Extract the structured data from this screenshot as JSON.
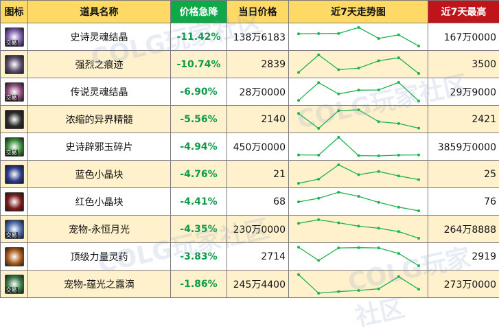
{
  "headers": {
    "icon": "图标",
    "name": "道具名称",
    "drop": "价格急降",
    "price": "当日价格",
    "trend": "近7天走势图",
    "max": "近7天最高"
  },
  "colors": {
    "header_bg": "#ffd966",
    "drop_header_bg": "#10a94a",
    "max_header_bg": "#c0141b",
    "alt_row_bg": "#fff1cc",
    "drop_text": "#0e9a48",
    "trend_line": "#1db34f"
  },
  "trade_tag": "交易",
  "watermark": "COLG玩家社区",
  "rows": [
    {
      "icon": "soul-crystal-epic-icon",
      "icon_bg": "#7a5aa8",
      "tag": true,
      "name": "史诗灵魂结晶",
      "drop": "-11.42%",
      "price": "138万6183",
      "max": "167万0000",
      "trend": [
        5,
        5.1,
        5.15,
        7.6,
        3.1,
        4.6,
        0
      ]
    },
    {
      "icon": "intense-trace-icon",
      "icon_bg": "#5a4a6a",
      "tag": false,
      "name": "强烈之痕迹",
      "drop": "-10.74%",
      "price": "2839",
      "max": "3500",
      "trend": [
        0.6,
        7.5,
        1.7,
        2.3,
        5.2,
        6.4,
        0.2
      ]
    },
    {
      "icon": "soul-crystal-legendary-icon",
      "icon_bg": "#8a4a7a",
      "tag": true,
      "name": "传说灵魂结晶",
      "drop": "-6.90%",
      "price": "28万0000",
      "max": "29万9000",
      "trend": [
        0.8,
        7.4,
        3.2,
        4.6,
        4.7,
        7.5,
        0.6
      ]
    },
    {
      "icon": "condensed-essence-icon",
      "icon_bg": "#2a2a2a",
      "tag": false,
      "name": "浓缩的异界精髓",
      "drop": "-5.56%",
      "price": "2140",
      "max": "2421",
      "trend": [
        6.6,
        0.8,
        7.7,
        8.0,
        3.4,
        2.7,
        0.9
      ]
    },
    {
      "icon": "epic-jade-fragment-icon",
      "icon_bg": "#3a8a3a",
      "tag": true,
      "name": "史诗辟邪玉碎片",
      "drop": "-4.94%",
      "price": "450万0000",
      "max": "3859万0000",
      "trend": [
        0.4,
        0.3,
        7.6,
        0.1,
        0.0,
        0.3,
        0.4
      ]
    },
    {
      "icon": "blue-crystal-icon",
      "icon_bg": "#2a3a8a",
      "tag": false,
      "name": "蓝色小晶块",
      "drop": "-4.76%",
      "price": "21",
      "max": "25",
      "trend": [
        0.3,
        2.0,
        7.8,
        3.8,
        5.1,
        3.3,
        1.8
      ]
    },
    {
      "icon": "red-crystal-icon",
      "icon_bg": "#7a1a1a",
      "tag": false,
      "name": "红色小晶块",
      "drop": "-4.41%",
      "price": "68",
      "max": "76",
      "trend": [
        3.8,
        5.3,
        7.8,
        6.1,
        3.6,
        1.6,
        0.1
      ]
    },
    {
      "icon": "pet-moonlight-icon",
      "icon_bg": "#4a6aaa",
      "tag": true,
      "name": "宠物-永恒月光",
      "drop": "-4.35%",
      "price": "230万0000",
      "max": "264万8888",
      "trend": [
        6.2,
        7.6,
        6.4,
        5.1,
        4.3,
        3.0,
        0.4
      ]
    },
    {
      "icon": "top-power-potion-icon",
      "icon_bg": "#a85a1a",
      "tag": false,
      "name": "顶级力量灵药",
      "drop": "-3.83%",
      "price": "2714",
      "max": "2919",
      "trend": [
        7.7,
        2.4,
        7.4,
        7.5,
        7.4,
        5.2,
        0.3
      ]
    },
    {
      "icon": "pet-dew-icon",
      "icon_bg": "#3a7a4a",
      "tag": true,
      "name": "宠物-蕴光之露滴",
      "drop": "-1.86%",
      "price": "245万4400",
      "max": "273万0000",
      "trend": [
        6.6,
        1.9,
        2.3,
        2.6,
        3.0,
        6.1,
        2.9
      ]
    }
  ]
}
